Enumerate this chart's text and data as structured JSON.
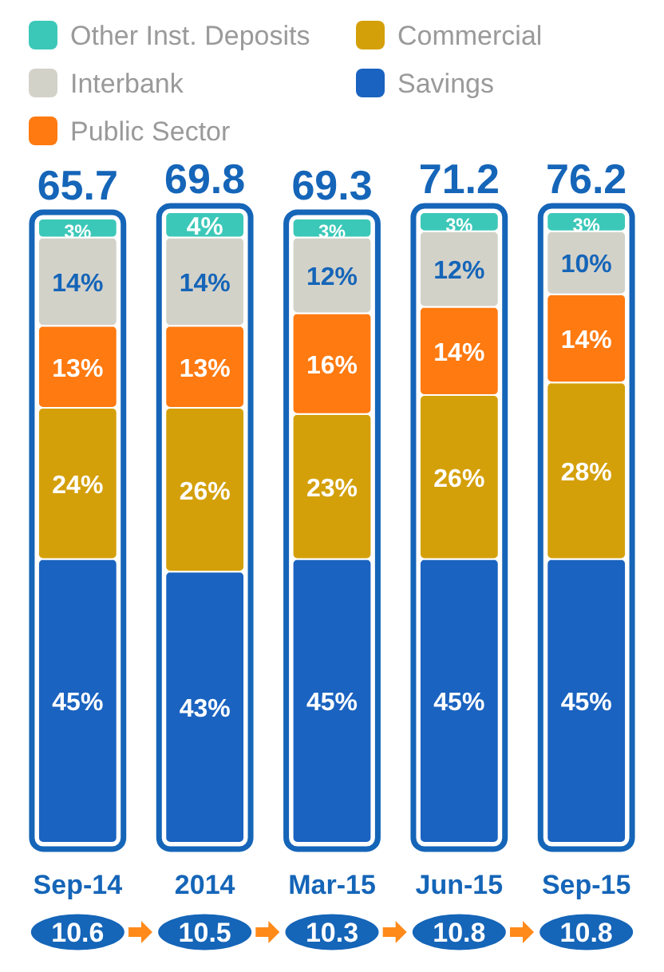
{
  "chart_data": {
    "type": "bar",
    "stacked": true,
    "legend": "top left",
    "categories": [
      "Sep-14",
      "2014",
      "Mar-15",
      "Jun-15",
      "Sep-15"
    ],
    "series": [
      {
        "name": "Savings",
        "color": "#1a63c0",
        "values": [
          45,
          43,
          45,
          45,
          45
        ],
        "value_labels": [
          "45%",
          "43%",
          "45%",
          "45%",
          "45%"
        ]
      },
      {
        "name": "Commercial",
        "color": "#d4a00a",
        "values": [
          24,
          26,
          23,
          26,
          28
        ],
        "value_labels": [
          "24%",
          "26%",
          "23%",
          "26%",
          "28%"
        ]
      },
      {
        "name": "Public Sector",
        "color": "#ff7a10",
        "values": [
          13,
          13,
          16,
          14,
          14
        ],
        "value_labels": [
          "13%",
          "13%",
          "16%",
          "14%",
          "14%"
        ]
      },
      {
        "name": "Interbank",
        "color": "#d3d2c9",
        "values": [
          14,
          14,
          12,
          12,
          10
        ],
        "value_labels": [
          "14%",
          "14%",
          "12%",
          "12%",
          "10%"
        ]
      },
      {
        "name": "Other Inst. Deposits",
        "color": "#3cc8b8",
        "values": [
          3,
          4,
          3,
          3,
          3
        ],
        "value_labels": [
          "3%",
          "4%",
          "3%",
          "3%",
          "3%"
        ]
      }
    ],
    "annotations": [
      "65.7",
      "69.8",
      "69.3",
      "71.2",
      "76.2",
      "10.6",
      "10.5",
      "10.3",
      "10.8",
      "10.8"
    ]
  }
}
